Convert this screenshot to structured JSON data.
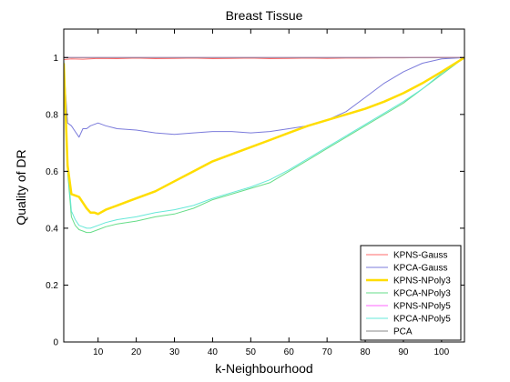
{
  "chart_data": {
    "type": "line",
    "title": "Breast Tissue",
    "xlabel": "k-Neighbourhood",
    "ylabel": "Quality of DR",
    "xlim": [
      1,
      106
    ],
    "ylim": [
      0,
      1.1
    ],
    "xticks": [
      10,
      20,
      30,
      40,
      50,
      60,
      70,
      80,
      90,
      100
    ],
    "yticks": [
      0,
      0.2,
      0.4,
      0.6,
      0.8,
      1
    ],
    "ytick_labels": [
      "0",
      "0.2",
      "0.4",
      "0.6",
      "0.8",
      "1"
    ],
    "grid": false,
    "legend_position": "bottom-right",
    "series": [
      {
        "name": "KPNS-Gauss",
        "color": "#ff6b6b",
        "width": 1,
        "x": [
          1,
          3,
          6,
          10,
          15,
          20,
          25,
          30,
          35,
          40,
          45,
          50,
          55,
          60,
          65,
          70,
          75,
          80,
          85,
          90,
          95,
          100,
          106
        ],
        "y": [
          0.993,
          0.995,
          0.994,
          0.997,
          0.996,
          0.998,
          0.996,
          0.997,
          0.998,
          0.996,
          0.997,
          0.998,
          0.996,
          0.997,
          0.998,
          0.997,
          0.998,
          0.998,
          0.999,
          0.999,
          1.0,
          1.0,
          1.0
        ]
      },
      {
        "name": "KPCA-Gauss",
        "color": "#7b7bdb",
        "width": 1,
        "x": [
          1,
          2,
          3,
          4,
          5,
          6,
          7,
          8,
          10,
          12,
          15,
          20,
          25,
          30,
          35,
          40,
          45,
          50,
          55,
          60,
          65,
          70,
          75,
          80,
          85,
          90,
          95,
          100,
          106
        ],
        "y": [
          0.97,
          0.77,
          0.76,
          0.74,
          0.72,
          0.75,
          0.75,
          0.76,
          0.77,
          0.76,
          0.75,
          0.745,
          0.735,
          0.73,
          0.735,
          0.74,
          0.74,
          0.735,
          0.74,
          0.75,
          0.76,
          0.78,
          0.81,
          0.86,
          0.91,
          0.95,
          0.98,
          0.995,
          1.0
        ]
      },
      {
        "name": "KPNS-NPoly3",
        "color": "#ffdd00",
        "width": 2.5,
        "x": [
          1,
          2,
          3,
          4,
          5,
          6,
          7,
          8,
          9,
          10,
          12,
          15,
          18,
          20,
          25,
          30,
          35,
          40,
          45,
          50,
          55,
          60,
          65,
          70,
          75,
          80,
          85,
          90,
          95,
          100,
          106
        ],
        "y": [
          0.98,
          0.62,
          0.52,
          0.515,
          0.51,
          0.49,
          0.47,
          0.455,
          0.455,
          0.45,
          0.465,
          0.48,
          0.495,
          0.505,
          0.53,
          0.565,
          0.6,
          0.635,
          0.66,
          0.685,
          0.71,
          0.735,
          0.76,
          0.78,
          0.8,
          0.82,
          0.845,
          0.875,
          0.91,
          0.95,
          1.0
        ]
      },
      {
        "name": "KPCA-NPoly3",
        "color": "#66dd88",
        "width": 1,
        "x": [
          1,
          2,
          3,
          4,
          5,
          6,
          7,
          8,
          10,
          12,
          15,
          20,
          25,
          30,
          35,
          40,
          45,
          50,
          55,
          60,
          65,
          70,
          75,
          80,
          85,
          90,
          95,
          100,
          106
        ],
        "y": [
          0.99,
          0.6,
          0.44,
          0.41,
          0.395,
          0.39,
          0.385,
          0.385,
          0.395,
          0.405,
          0.415,
          0.425,
          0.44,
          0.45,
          0.47,
          0.5,
          0.52,
          0.54,
          0.56,
          0.6,
          0.64,
          0.68,
          0.72,
          0.76,
          0.8,
          0.84,
          0.89,
          0.94,
          1.0
        ]
      },
      {
        "name": "KPNS-NPoly5",
        "color": "#ff66ff",
        "width": 1,
        "x": [
          1,
          5,
          10,
          20,
          30,
          40,
          50,
          60,
          70,
          80,
          90,
          100,
          106
        ],
        "y": [
          1.0,
          1.0,
          1.0,
          1.0,
          1.0,
          1.0,
          1.0,
          1.0,
          1.0,
          1.0,
          1.0,
          1.0,
          1.0
        ]
      },
      {
        "name": "KPCA-NPoly5",
        "color": "#66e8d8",
        "width": 1,
        "x": [
          1,
          2,
          3,
          4,
          5,
          6,
          7,
          8,
          10,
          12,
          15,
          20,
          25,
          30,
          35,
          40,
          45,
          50,
          55,
          60,
          65,
          70,
          75,
          80,
          85,
          90,
          95,
          100,
          106
        ],
        "y": [
          0.99,
          0.62,
          0.46,
          0.43,
          0.41,
          0.405,
          0.4,
          0.4,
          0.41,
          0.42,
          0.43,
          0.44,
          0.455,
          0.465,
          0.48,
          0.505,
          0.525,
          0.545,
          0.57,
          0.605,
          0.645,
          0.685,
          0.725,
          0.765,
          0.805,
          0.845,
          0.89,
          0.945,
          1.0
        ]
      },
      {
        "name": "PCA",
        "color": "#888888",
        "width": 1,
        "x": [
          1,
          106
        ],
        "y": [
          1.0,
          1.0
        ]
      }
    ]
  }
}
